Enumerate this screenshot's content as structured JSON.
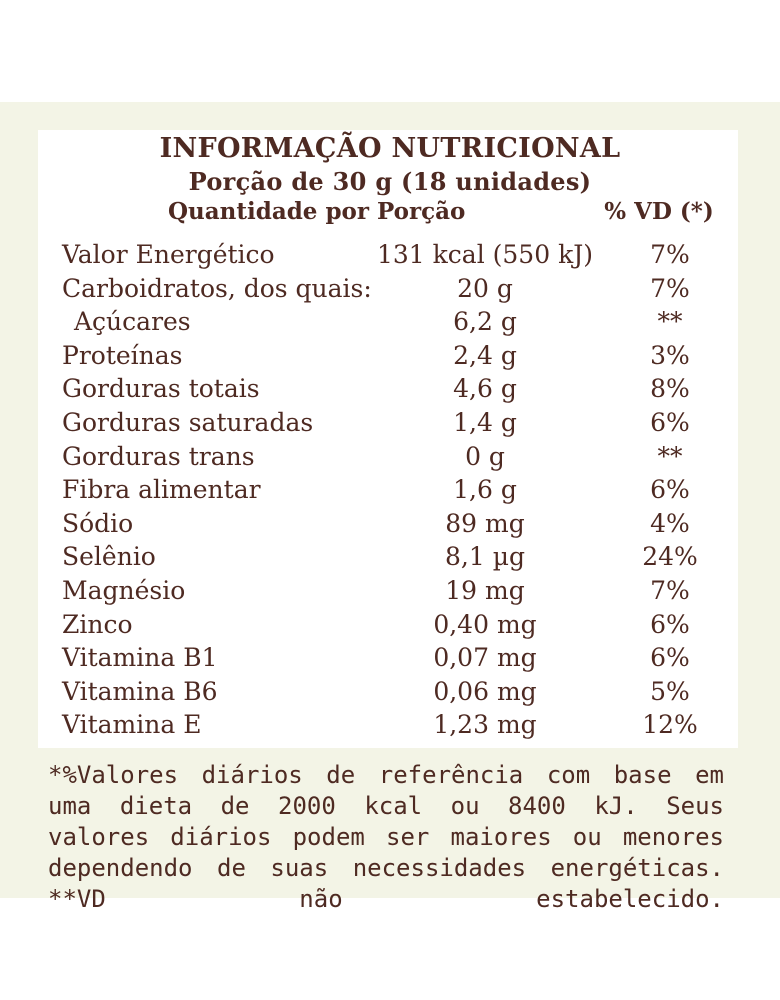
{
  "label": {
    "title": "INFORMAÇÃO NUTRICIONAL",
    "portion": "Porção de 30 g (18 unidades)",
    "header_quantity": "Quantidade por Porção",
    "header_vd": "% VD (*)",
    "rows": [
      {
        "name": "Valor Energético",
        "qty": "131 kcal (550 kJ)",
        "vd": "7%"
      },
      {
        "name": "Carboidratos, dos quais:",
        "qty": "20 g",
        "vd": "7%"
      },
      {
        "name": "Açúcares",
        "qty": "6,2 g",
        "vd": "**"
      },
      {
        "name": "Proteínas",
        "qty": "2,4 g",
        "vd": "3%"
      },
      {
        "name": "Gorduras totais",
        "qty": "4,6 g",
        "vd": "8%"
      },
      {
        "name": "Gorduras saturadas",
        "qty": "1,4 g",
        "vd": "6%"
      },
      {
        "name": "Gorduras trans",
        "qty": "0 g",
        "vd": "**"
      },
      {
        "name": "Fibra alimentar",
        "qty": "1,6 g",
        "vd": "6%"
      },
      {
        "name": "Sódio",
        "qty": "89 mg",
        "vd": "4%"
      },
      {
        "name": "Selênio",
        "qty": "8,1 µg",
        "vd": "24%"
      },
      {
        "name": "Magnésio",
        "qty": "19 mg",
        "vd": "7%"
      },
      {
        "name": "Zinco",
        "qty": "0,40 mg",
        "vd": "6%"
      },
      {
        "name": "Vitamina B1",
        "qty": "0,07 mg",
        "vd": "6%"
      },
      {
        "name": "Vitamina B6",
        "qty": "0,06 mg",
        "vd": "5%"
      },
      {
        "name": "Vitamina E",
        "qty": "1,23 mg",
        "vd": "12%"
      }
    ],
    "footnote": "*%Valores diários de referência com base em uma dieta de 2000 kcal ou 8400 kJ. Seus valores diários podem ser maiores ou menores dependendo de suas necessidades energéticas. **VD não estabelecido."
  },
  "colors": {
    "text": "#4e2a22",
    "panel_background": "#f3f4e6",
    "card_background": "#ffffff"
  }
}
